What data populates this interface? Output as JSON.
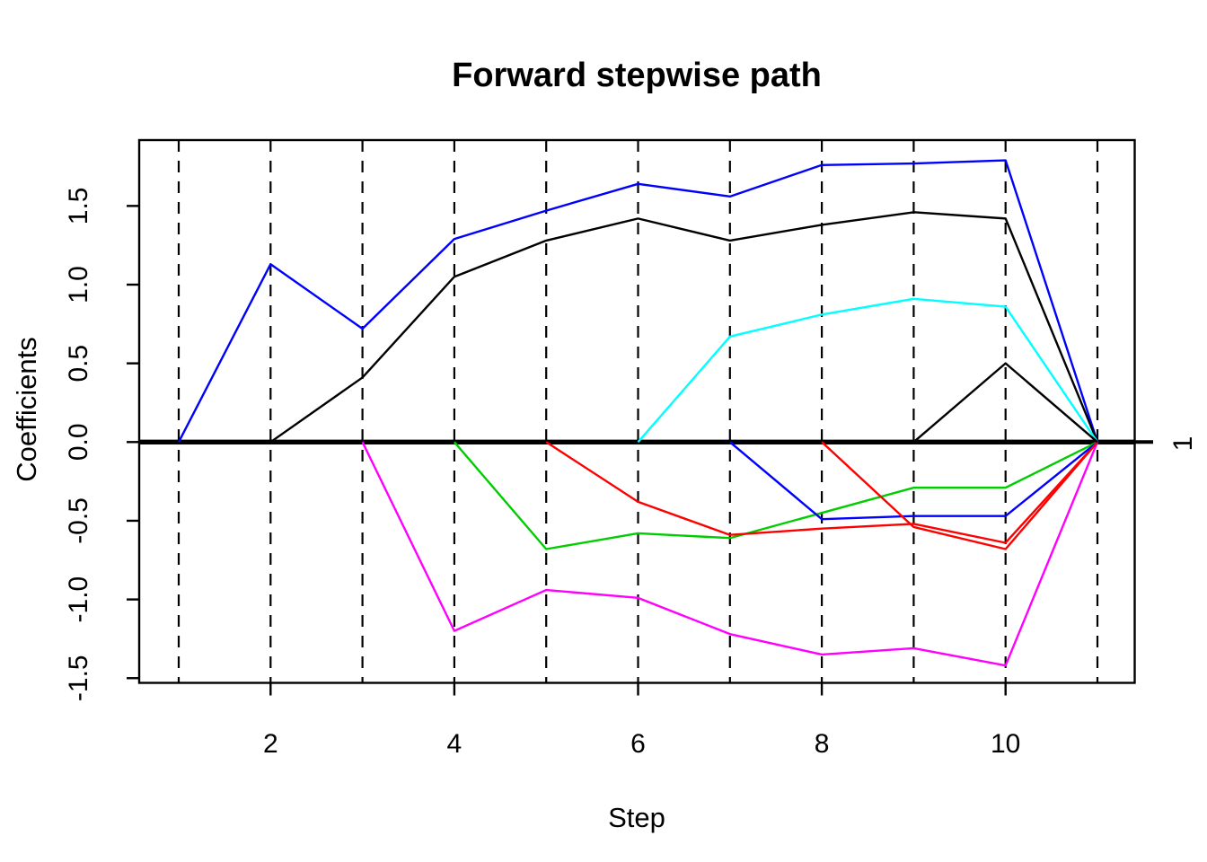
{
  "page": {
    "background_color": "#FFFFFF"
  },
  "chart_data": {
    "type": "line",
    "title": "Forward stepwise path",
    "xlabel": "Step",
    "ylabel": "Coefficients",
    "right_axis_label": "1",
    "legend_position": "none",
    "grid": "vertical dashed lines at every integer step 1-11",
    "x": [
      1,
      2,
      3,
      4,
      5,
      6,
      7,
      8,
      9,
      10,
      11
    ],
    "x_tick_values": [
      2,
      4,
      6,
      8,
      10
    ],
    "x_tick_labels": [
      "2",
      "4",
      "6",
      "8",
      "10"
    ],
    "y_tick_values": [
      -1.5,
      -1.0,
      -0.5,
      0.0,
      0.5,
      1.0,
      1.5
    ],
    "y_tick_labels": [
      "-1.5",
      "-1.0",
      "-0.5",
      "0.0",
      "0.5",
      "1.0",
      "1.5"
    ],
    "xlim": [
      0.57,
      11.4
    ],
    "ylim": [
      -1.53,
      1.92
    ],
    "zero_line": {
      "y": 0,
      "color": "#000000",
      "style": "thick solid horizontal"
    },
    "colors": {
      "blue": "#0000FF",
      "black": "#000000",
      "magenta": "#FF00FF",
      "green": "#00CD00",
      "red": "#FF0000",
      "cyan": "#00FFFF"
    },
    "series": [
      {
        "name": "path-blue-1",
        "color": "#0000FF",
        "enters_at_step": 1,
        "values": [
          0,
          1.13,
          0.72,
          1.29,
          1.47,
          1.64,
          1.56,
          1.76,
          1.77,
          1.79,
          0
        ]
      },
      {
        "name": "path-black-1",
        "color": "#000000",
        "enters_at_step": 2,
        "values": [
          null,
          0,
          0.41,
          1.05,
          1.28,
          1.42,
          1.28,
          1.38,
          1.46,
          1.42,
          0
        ]
      },
      {
        "name": "path-magenta-1",
        "color": "#FF00FF",
        "enters_at_step": 3,
        "values": [
          null,
          null,
          0,
          -1.2,
          -0.94,
          -0.99,
          -1.22,
          -1.35,
          -1.31,
          -1.42,
          0
        ]
      },
      {
        "name": "path-green-1",
        "color": "#00CD00",
        "enters_at_step": 4,
        "values": [
          null,
          null,
          null,
          0,
          -0.68,
          -0.58,
          -0.61,
          -0.45,
          -0.29,
          -0.29,
          0
        ]
      },
      {
        "name": "path-red-1",
        "color": "#FF0000",
        "enters_at_step": 5,
        "values": [
          null,
          null,
          null,
          null,
          0,
          -0.38,
          -0.59,
          -0.55,
          -0.52,
          -0.64,
          0
        ]
      },
      {
        "name": "path-cyan-1",
        "color": "#00FFFF",
        "enters_at_step": 6,
        "values": [
          null,
          null,
          null,
          null,
          null,
          0,
          0.67,
          0.81,
          0.91,
          0.86,
          0
        ]
      },
      {
        "name": "path-blue-2",
        "color": "#0000FF",
        "enters_at_step": 7,
        "values": [
          null,
          null,
          null,
          null,
          null,
          null,
          0,
          -0.49,
          -0.47,
          -0.47,
          0
        ]
      },
      {
        "name": "path-red-2",
        "color": "#FF0000",
        "enters_at_step": 8,
        "values": [
          null,
          null,
          null,
          null,
          null,
          null,
          null,
          0,
          -0.54,
          -0.68,
          0
        ]
      },
      {
        "name": "path-black-2",
        "color": "#000000",
        "enters_at_step": 9,
        "values": [
          null,
          null,
          null,
          null,
          null,
          null,
          null,
          null,
          0,
          0.5,
          0
        ]
      }
    ]
  }
}
